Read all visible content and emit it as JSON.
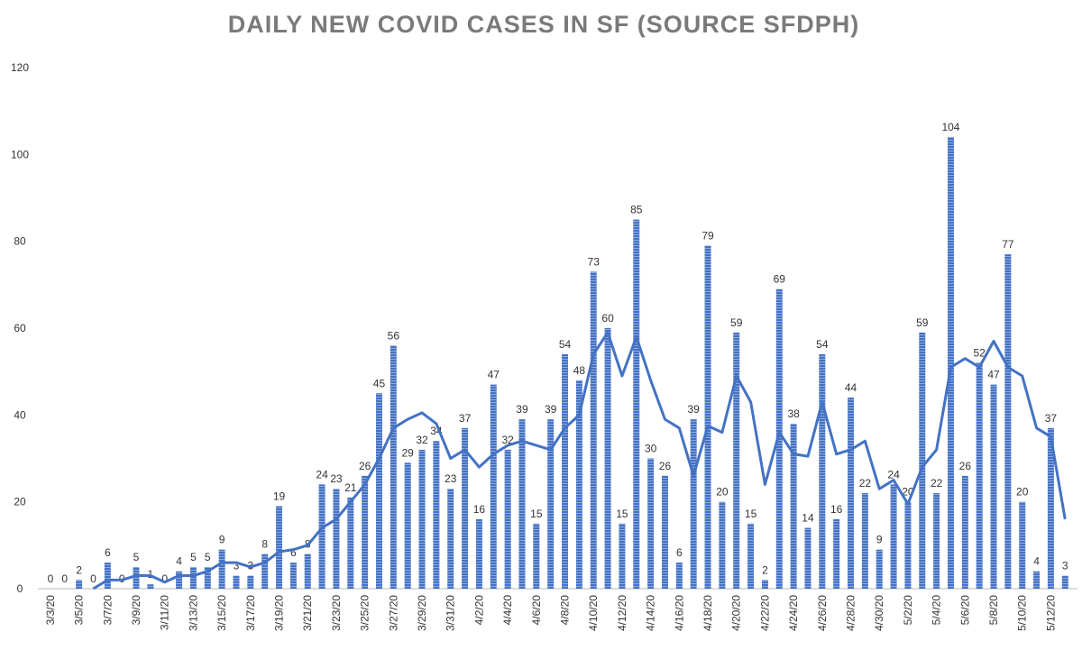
{
  "chart_data": {
    "type": "bar",
    "title": "DAILY NEW COVID CASES IN SF (SOURCE SFDPH)",
    "categories": [
      "3/3/20",
      null,
      "3/5/20",
      null,
      "3/7/20",
      null,
      "3/9/20",
      null,
      "3/11/20",
      null,
      "3/13/20",
      null,
      "3/15/20",
      null,
      "3/17/20",
      null,
      "3/19/20",
      null,
      "3/21/20",
      null,
      "3/23/20",
      null,
      "3/25/20",
      null,
      "3/27/20",
      null,
      "3/29/20",
      null,
      "3/31/20",
      null,
      "4/2/20",
      null,
      "4/4/20",
      null,
      "4/6/20",
      null,
      "4/8/20",
      null,
      "4/10/20",
      null,
      "4/12/20",
      null,
      "4/14/20",
      null,
      "4/16/20",
      null,
      "4/18/20",
      null,
      "4/20/20",
      null,
      "4/22/20",
      null,
      "4/24/20",
      null,
      "4/26/20",
      null,
      "4/28/20",
      null,
      "4/30/20",
      null,
      "5/2/20",
      null,
      "5/4/20",
      null,
      "5/6/20",
      null,
      "5/8/20",
      null,
      "5/10/20",
      null,
      "5/12/20",
      null
    ],
    "series": [
      {
        "type": "bar",
        "color": "#4472c4",
        "data_labels": true,
        "values": [
          0,
          0,
          2,
          0,
          6,
          0,
          5,
          1,
          0,
          4,
          5,
          5,
          9,
          3,
          3,
          8,
          19,
          6,
          8,
          24,
          23,
          21,
          26,
          45,
          56,
          29,
          32,
          34,
          23,
          37,
          16,
          47,
          32,
          39,
          15,
          39,
          54,
          48,
          73,
          60,
          15,
          85,
          30,
          26,
          6,
          39,
          79,
          20,
          59,
          15,
          2,
          69,
          38,
          14,
          54,
          16,
          44,
          22,
          9,
          24,
          20,
          59,
          22,
          104,
          26,
          52,
          47,
          77,
          20,
          4,
          37,
          3
        ]
      },
      {
        "type": "line",
        "color": "#4472c4",
        "values": [
          null,
          null,
          null,
          0,
          2,
          2,
          3,
          3,
          1.5,
          3,
          3,
          4,
          6,
          6,
          5,
          6,
          8.5,
          9,
          10,
          14,
          16,
          20,
          24,
          30,
          37,
          39,
          40.5,
          38,
          30,
          32,
          28,
          31,
          33,
          34,
          33,
          32,
          37,
          40,
          54,
          59,
          49,
          58,
          48,
          39,
          37,
          26,
          37.5,
          36,
          49,
          43,
          24,
          36,
          31,
          30.5,
          43,
          31,
          32,
          34,
          23,
          25,
          19.5,
          28,
          32,
          51,
          53,
          51,
          57,
          51,
          49,
          37,
          35,
          16
        ]
      }
    ],
    "ylim": [
      0,
      120
    ],
    "yticks": [
      0,
      20,
      40,
      60,
      80,
      100,
      120
    ],
    "grid": false
  }
}
